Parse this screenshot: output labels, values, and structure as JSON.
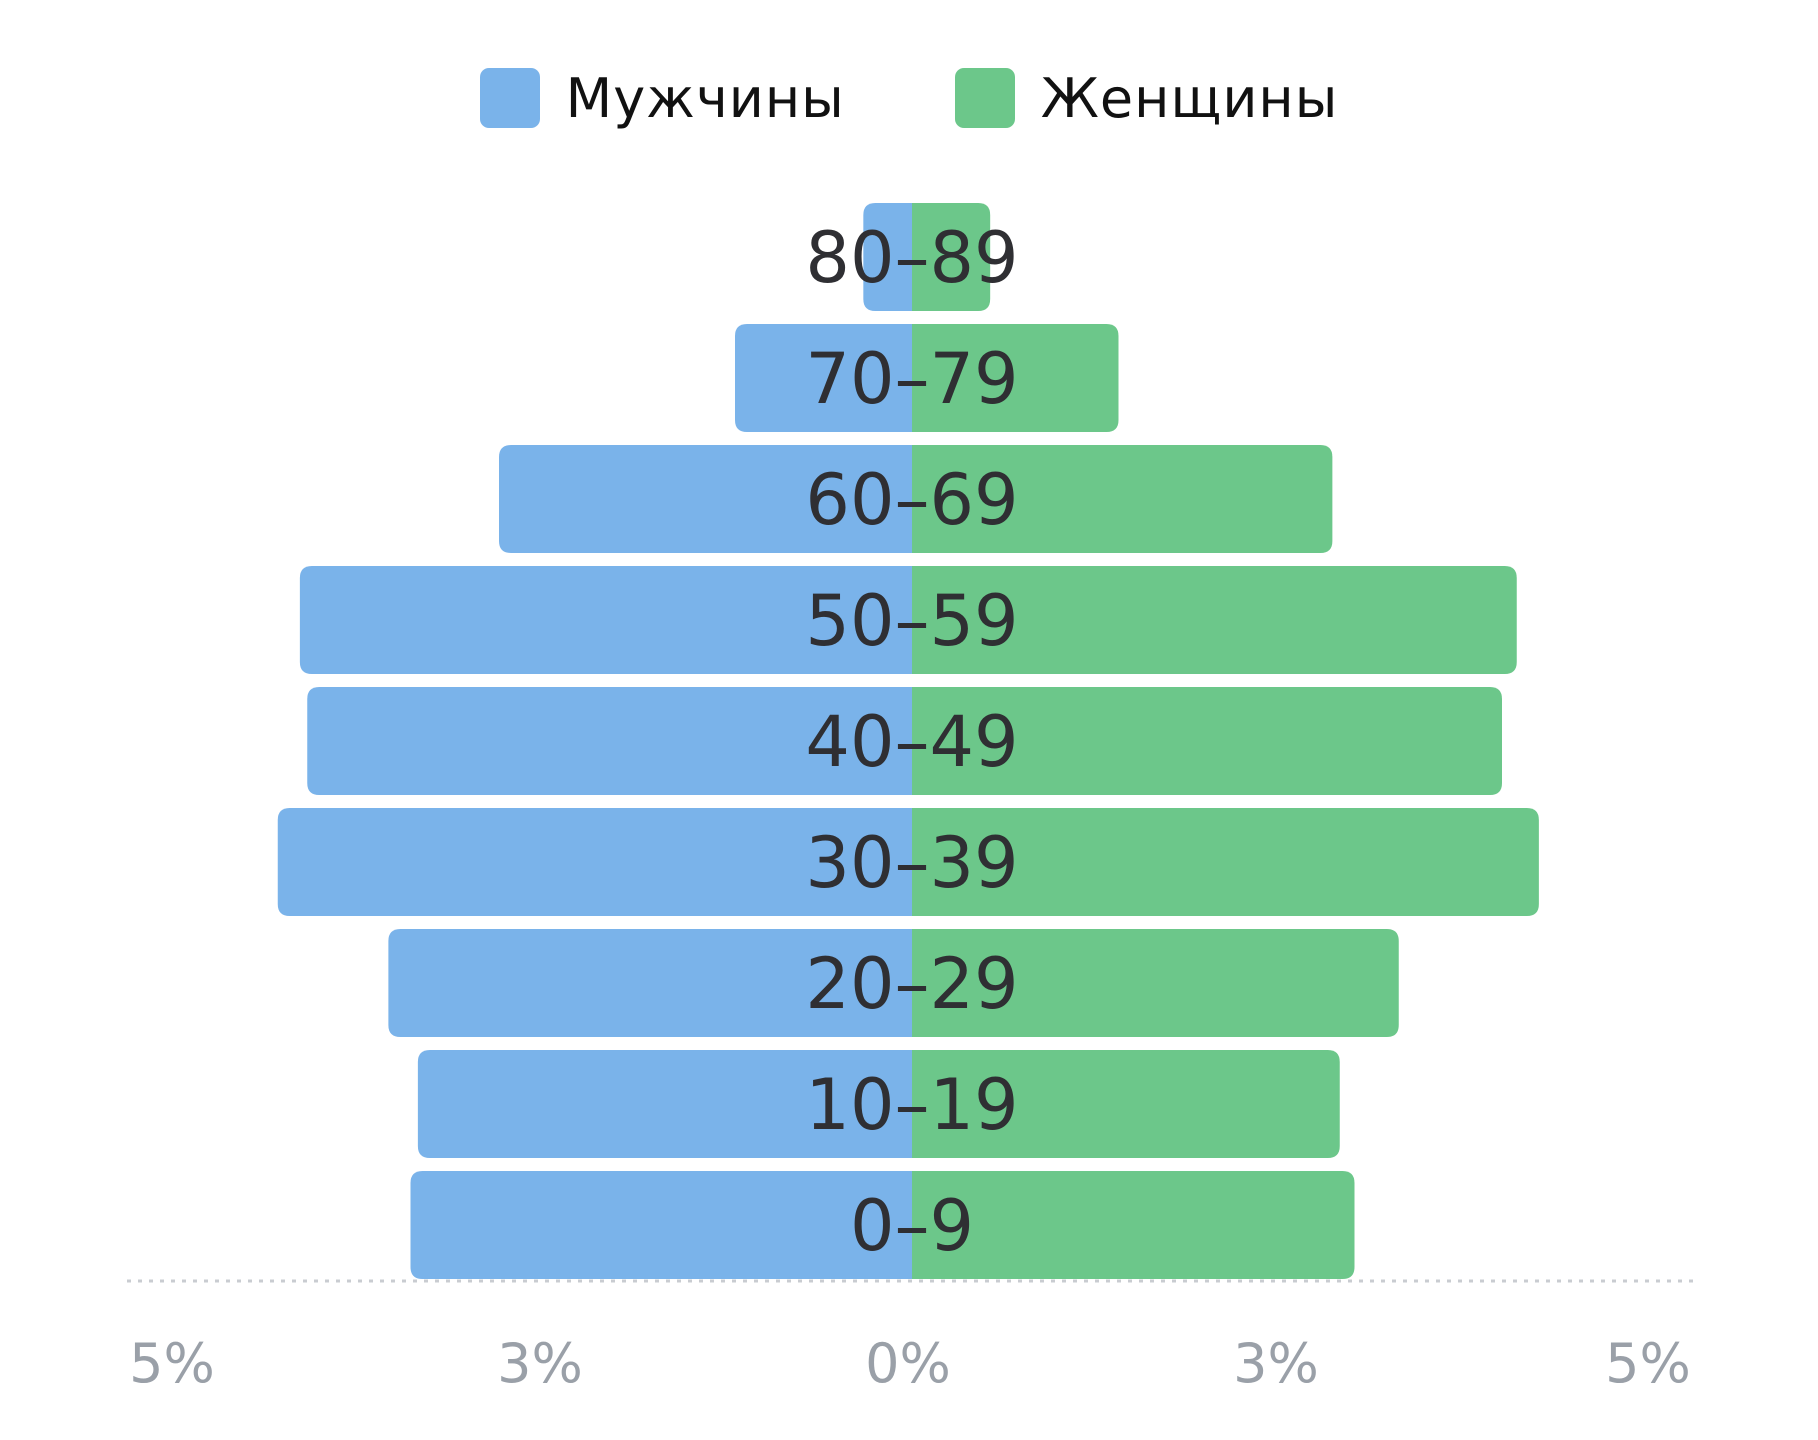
{
  "chart_data": {
    "type": "bar",
    "orientation": "horizontal",
    "layout": "population-pyramid",
    "categories": [
      "0–9",
      "10–19",
      "20–29",
      "30–39",
      "40–49",
      "50–59",
      "60–69",
      "70–79",
      "80–89"
    ],
    "series": [
      {
        "name": "Мужчины",
        "color": "#7ab3ea",
        "side": "left",
        "values": [
          3.4,
          3.35,
          3.55,
          4.3,
          4.1,
          4.15,
          2.8,
          1.2,
          0.33
        ]
      },
      {
        "name": "Женщины",
        "color": "#6cc78a",
        "side": "right",
        "values": [
          3.0,
          2.9,
          3.3,
          4.25,
          4.0,
          4.1,
          2.85,
          1.4,
          0.53
        ]
      }
    ],
    "xlim": [
      -5,
      5
    ],
    "xticks": [
      -5,
      -2.5,
      0,
      2.5,
      5
    ],
    "xtick_labels": [
      "5%",
      "3%",
      "0%",
      "3%",
      "5%"
    ],
    "legend_position": "top-center",
    "baseline": "dotted"
  }
}
